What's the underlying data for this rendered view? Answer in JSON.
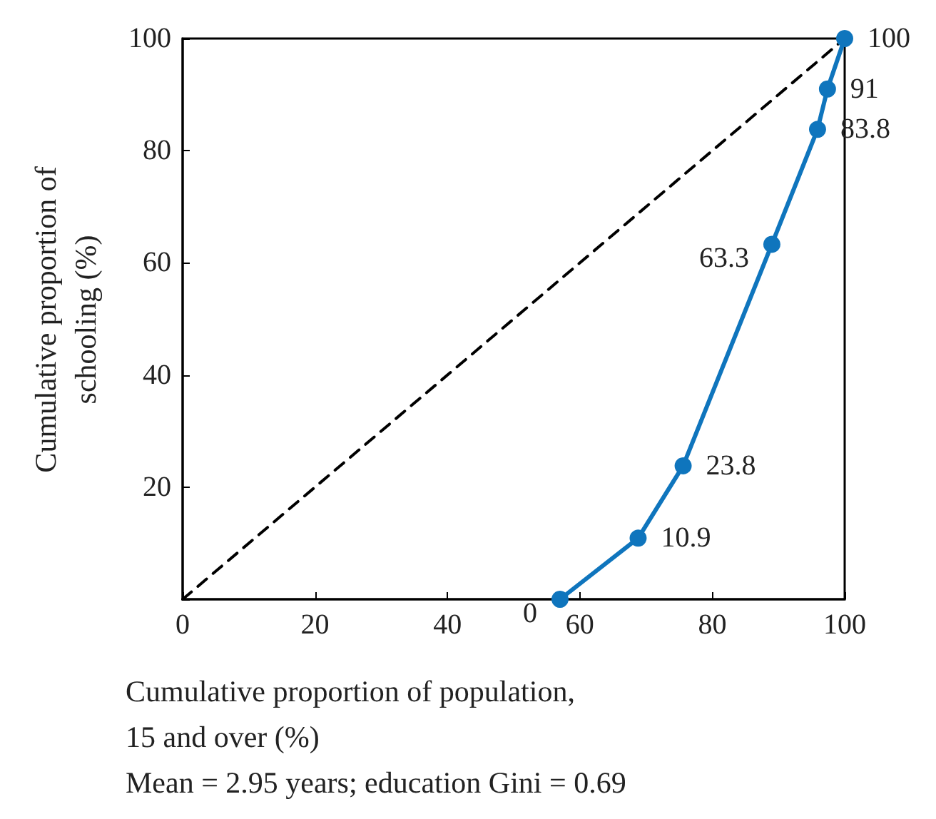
{
  "chart_data": {
    "type": "line",
    "xlabel": "Cumulative proportion of population,\n15 and over (%)",
    "ylabel": "Cumulative proportion of\nschooling (%)",
    "annotations": [
      "Mean = 2.95 years; education Gini = 0.69"
    ],
    "xlim": [
      0,
      100
    ],
    "xticks": [
      0,
      20,
      40,
      60,
      80,
      100
    ],
    "ylim": [
      0,
      100
    ],
    "yticks": [
      {
        "value": 0,
        "label": null
      },
      20,
      40,
      60,
      80,
      100
    ],
    "grid": false,
    "marker": "circle",
    "series": [
      {
        "color": "#0f75bd",
        "x": [
          57,
          68.8,
          75.6,
          89,
          95.9,
          97.4,
          100
        ],
        "values": [
          0,
          10.9,
          23.8,
          63.3,
          83.8,
          91,
          100
        ],
        "value_labels": [
          "0",
          "10.9",
          "23.8",
          "63.3",
          "83.8",
          "91",
          "100"
        ]
      },
      {
        "color": "#000000",
        "x": [
          0,
          100
        ],
        "values": [
          0,
          100
        ],
        "line_style": "dashed",
        "marker": "none"
      }
    ]
  }
}
